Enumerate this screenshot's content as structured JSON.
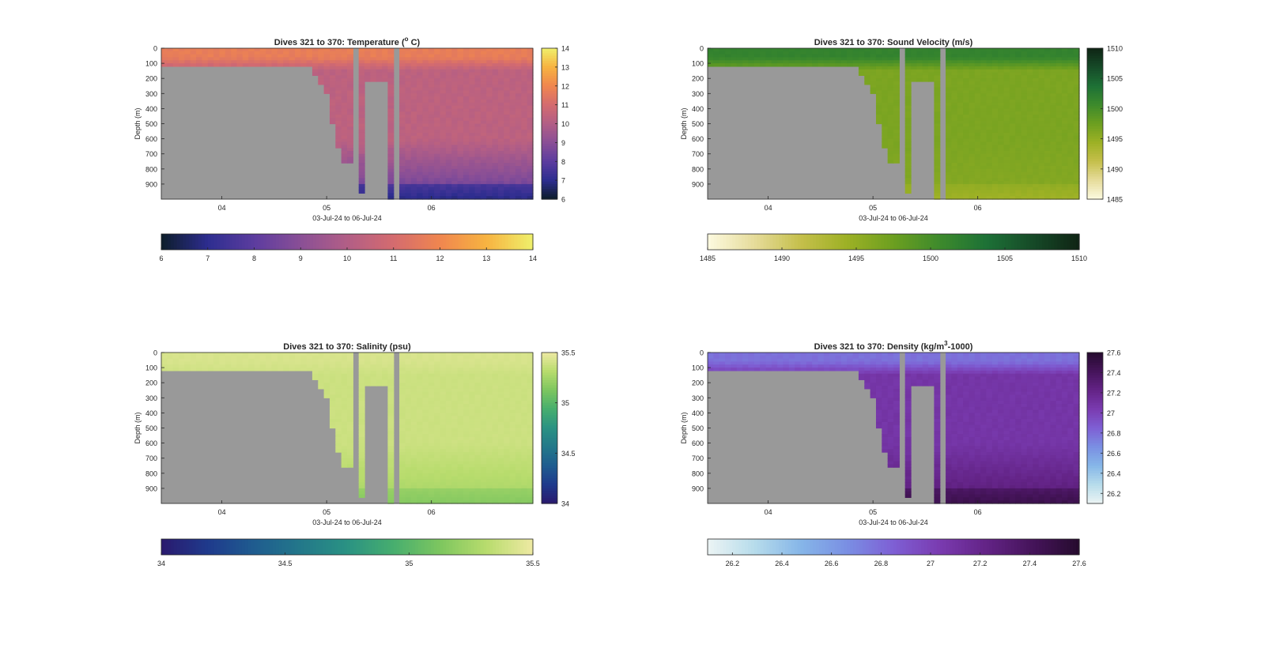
{
  "figure": {
    "xlabel": "03-Jul-24 to 06-Jul-24"
  },
  "chart_data": [
    {
      "type": "heatmap",
      "title": "Dives 321 to 370: Temperature (° C)",
      "title_parts": [
        "Dives 321 to 370: Temperature (",
        "o",
        " C)"
      ],
      "title_style": "superscript",
      "xlabel": "03-Jul-24 to 06-Jul-24",
      "ylabel": "Depth (m)",
      "x_ticks": [
        "04",
        "05",
        "06"
      ],
      "y_ticks": [
        0,
        100,
        200,
        300,
        400,
        500,
        600,
        700,
        800,
        900
      ],
      "ylim": [
        0,
        1000
      ],
      "y_reversed": true,
      "no_data_color": "#999999",
      "colormap": [
        "#0d1d2a",
        "#2d2d8f",
        "#5c3c9f",
        "#8a4f96",
        "#b25e86",
        "#d46b6f",
        "#f0864f",
        "#f7b341",
        "#eff06b"
      ],
      "colorbar_range": [
        6,
        14
      ],
      "colorbar_ticks": [
        6,
        7,
        8,
        9,
        10,
        11,
        12,
        13,
        14
      ],
      "hbar_ticks": [
        6,
        7,
        8,
        9,
        10,
        11,
        12,
        13,
        14
      ],
      "profile": {
        "surface": 11.7,
        "mid": 10.3,
        "deep": 8.1,
        "bottom": 6.9
      }
    },
    {
      "type": "heatmap",
      "title": "Dives 321 to 370: Sound Velocity (m/s)",
      "xlabel": "03-Jul-24 to 06-Jul-24",
      "ylabel": "Depth (m)",
      "x_ticks": [
        "04",
        "05",
        "06"
      ],
      "y_ticks": [
        0,
        100,
        200,
        300,
        400,
        500,
        600,
        700,
        800,
        900
      ],
      "ylim": [
        0,
        1000
      ],
      "y_reversed": true,
      "no_data_color": "#999999",
      "colormap": [
        "#fdfae0",
        "#e6dc9b",
        "#c5bf4b",
        "#9db125",
        "#6c9f20",
        "#3d8a2c",
        "#1d7136",
        "#164a28",
        "#0f2414"
      ],
      "colorbar_range": [
        1485,
        1510
      ],
      "colorbar_ticks": [
        1485,
        1490,
        1495,
        1500,
        1505,
        1510
      ],
      "hbar_ticks": [
        1485,
        1490,
        1495,
        1500,
        1505,
        1510
      ],
      "profile": {
        "surface": 1501.5,
        "mid": 1496.5,
        "deep": 1495.8,
        "bottom": 1494.2
      }
    },
    {
      "type": "heatmap",
      "title": "Dives 321 to 370: Salinity (psu)",
      "xlabel": "03-Jul-24 to 06-Jul-24",
      "ylabel": "Depth (m)",
      "x_ticks": [
        "04",
        "05",
        "06"
      ],
      "y_ticks": [
        0,
        100,
        200,
        300,
        400,
        500,
        600,
        700,
        800,
        900
      ],
      "ylim": [
        0,
        1000
      ],
      "y_reversed": true,
      "no_data_color": "#999999",
      "colormap": [
        "#2a1a6e",
        "#1f3a8c",
        "#1f5c8f",
        "#23788a",
        "#2a9283",
        "#47ae6e",
        "#7dc65f",
        "#b8dc6d",
        "#eee9a3"
      ],
      "colorbar_range": [
        34,
        35.5
      ],
      "colorbar_ticks": [
        34,
        34.5,
        35,
        35.5
      ],
      "hbar_ticks": [
        34,
        34.5,
        35,
        35.5
      ],
      "profile": {
        "surface": 35.42,
        "mid": 35.38,
        "deep": 35.25,
        "bottom": 35.15
      }
    },
    {
      "type": "heatmap",
      "title": "Dives 321 to 370: Density (kg/m³-1000)",
      "title_parts": [
        "Dives 321 to 370: Density (kg/m",
        "3",
        "-1000)"
      ],
      "title_style": "superscript",
      "xlabel": "03-Jul-24 to 06-Jul-24",
      "ylabel": "Depth (m)",
      "x_ticks": [
        "04",
        "05",
        "06"
      ],
      "y_ticks": [
        0,
        100,
        200,
        300,
        400,
        500,
        600,
        700,
        800,
        900
      ],
      "ylim": [
        0,
        1000
      ],
      "y_reversed": true,
      "no_data_color": "#999999",
      "colormap": [
        "#ecf4f4",
        "#b7dceb",
        "#86b6e8",
        "#7a8fe3",
        "#7e5fd4",
        "#7a3bb0",
        "#632386",
        "#45145a",
        "#260b2e"
      ],
      "colorbar_range": [
        26.1,
        27.6
      ],
      "colorbar_ticks": [
        26.2,
        26.4,
        26.6,
        26.8,
        27,
        27.2,
        27.4,
        27.6
      ],
      "hbar_ticks": [
        26.2,
        26.4,
        26.6,
        26.8,
        27,
        27.2,
        27.4,
        27.6
      ],
      "profile": {
        "surface": 26.78,
        "mid": 27.08,
        "deep": 27.3,
        "bottom": 27.47
      }
    }
  ]
}
